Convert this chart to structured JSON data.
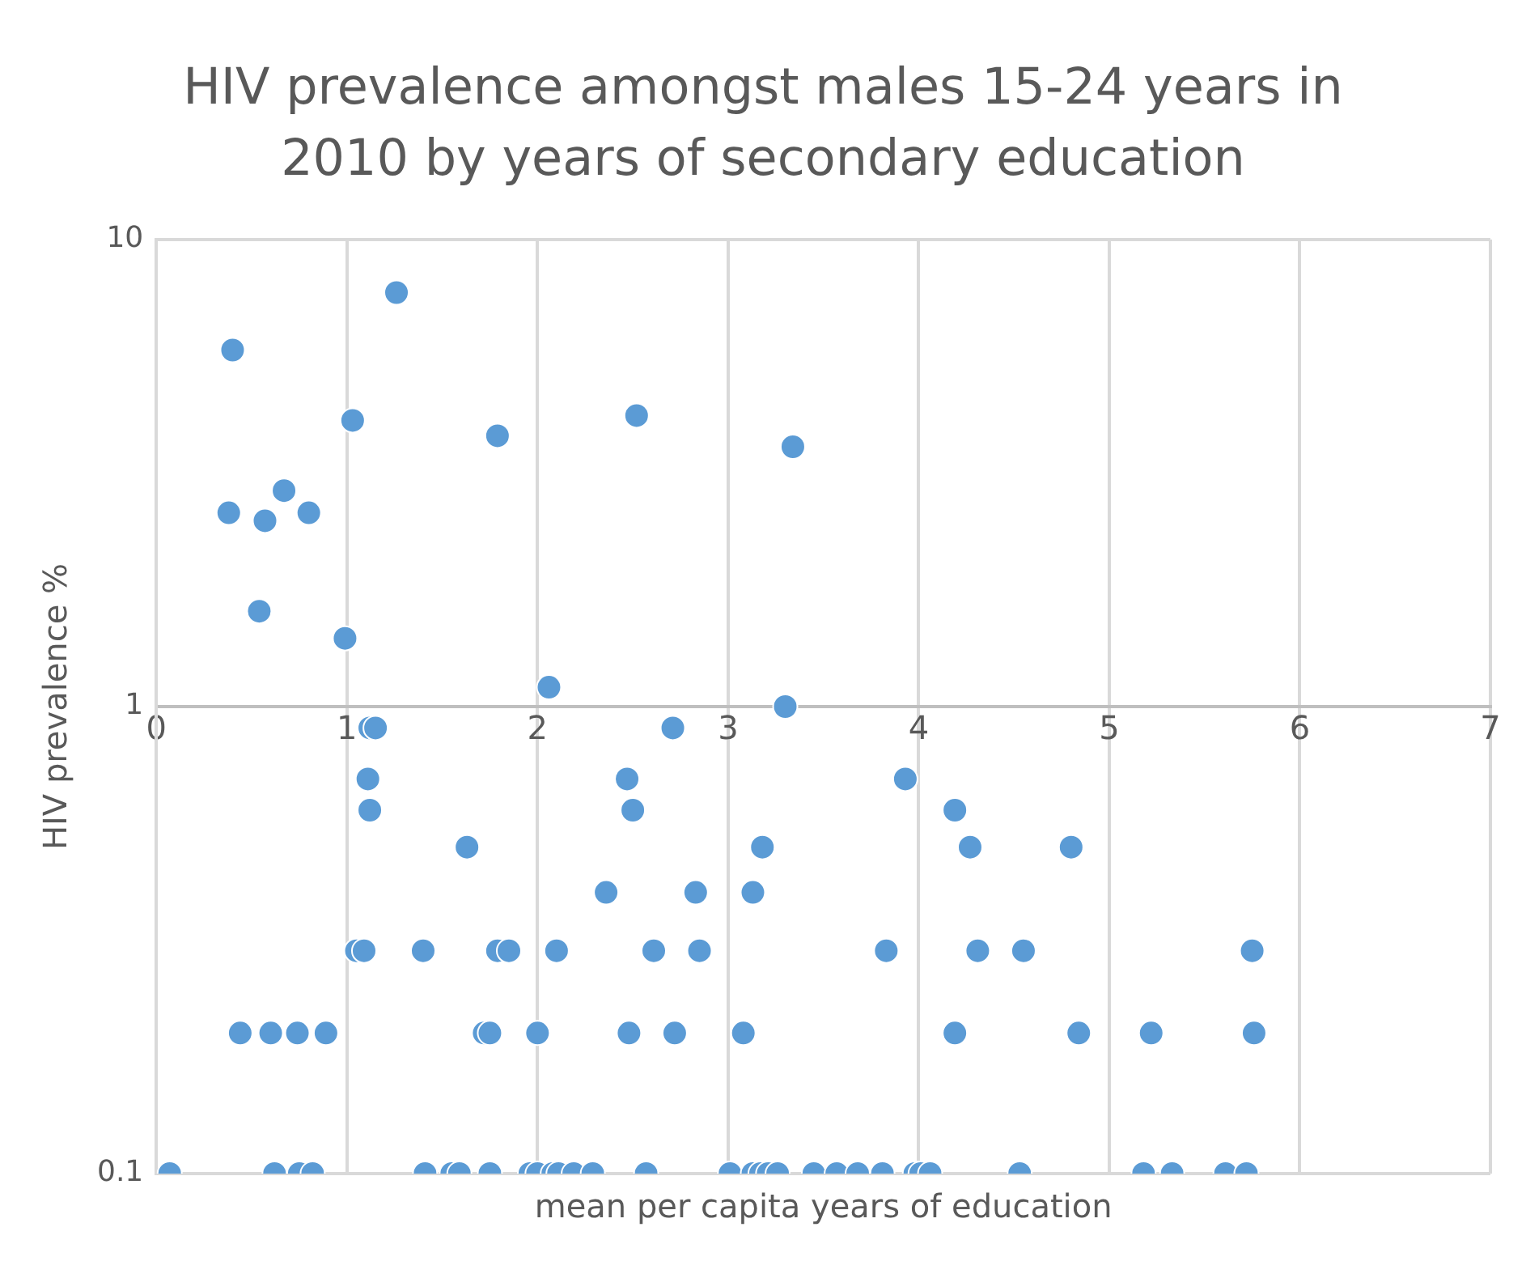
{
  "chart_data": {
    "type": "scatter",
    "title": "HIV prevalence amongst males 15-24 years in 2010 by years of secondary education",
    "xlabel": "mean per capita years of education",
    "ylabel": "HIV prevalence %",
    "xlim": [
      0,
      7
    ],
    "xticks": [
      0,
      1,
      2,
      3,
      4,
      5,
      6,
      7
    ],
    "ylim": [
      0.1,
      10
    ],
    "yticks": [
      0.1,
      1,
      10
    ],
    "log": "y",
    "grid": true,
    "marker": "circle",
    "legend": false,
    "series": [
      {
        "color": "#5b9bd5",
        "x": [
          0.4,
          1.26,
          0.38,
          0.57,
          0.67,
          0.8,
          0.54,
          0.99,
          1.03,
          1.79,
          2.52,
          3.34,
          2.06,
          3.3,
          1.12,
          1.15,
          2.71,
          1.11,
          2.47,
          3.93,
          1.12,
          2.5,
          4.19,
          1.63,
          3.18,
          4.27,
          4.8,
          2.36,
          2.83,
          3.13,
          1.05,
          1.09,
          1.4,
          1.79,
          1.85,
          2.1,
          2.61,
          2.85,
          3.83,
          4.31,
          4.55,
          5.75,
          0.44,
          0.6,
          0.74,
          0.89,
          1.72,
          1.75,
          2.0,
          2.48,
          2.72,
          3.08,
          4.19,
          4.84,
          5.22,
          5.76,
          0.07,
          0.62,
          0.75,
          0.82,
          1.41,
          1.55,
          1.59,
          1.75,
          1.96,
          2.0,
          2.08,
          2.11,
          2.19,
          2.29,
          2.57,
          3.01,
          3.13,
          3.17,
          3.21,
          3.26,
          3.45,
          3.57,
          3.68,
          3.81,
          3.98,
          4.01,
          4.06,
          4.53,
          5.18,
          5.33,
          5.61,
          5.72
        ],
        "values": [
          5.8,
          7.7,
          2.6,
          2.5,
          2.9,
          2.6,
          1.6,
          1.4,
          4.1,
          3.8,
          4.2,
          3.6,
          1.1,
          1.0,
          0.9,
          0.9,
          0.9,
          0.7,
          0.7,
          0.7,
          0.6,
          0.6,
          0.6,
          0.5,
          0.5,
          0.5,
          0.5,
          0.4,
          0.4,
          0.4,
          0.3,
          0.3,
          0.3,
          0.3,
          0.3,
          0.3,
          0.3,
          0.3,
          0.3,
          0.3,
          0.3,
          0.3,
          0.2,
          0.2,
          0.2,
          0.2,
          0.2,
          0.2,
          0.2,
          0.2,
          0.2,
          0.2,
          0.2,
          0.2,
          0.2,
          0.2,
          0.1,
          0.1,
          0.1,
          0.1,
          0.1,
          0.1,
          0.1,
          0.1,
          0.1,
          0.1,
          0.1,
          0.1,
          0.1,
          0.1,
          0.1,
          0.1,
          0.1,
          0.1,
          0.1,
          0.1,
          0.1,
          0.1,
          0.1,
          0.1,
          0.1,
          0.1,
          0.1,
          0.1,
          0.1,
          0.1,
          0.1,
          0.1
        ]
      }
    ]
  }
}
